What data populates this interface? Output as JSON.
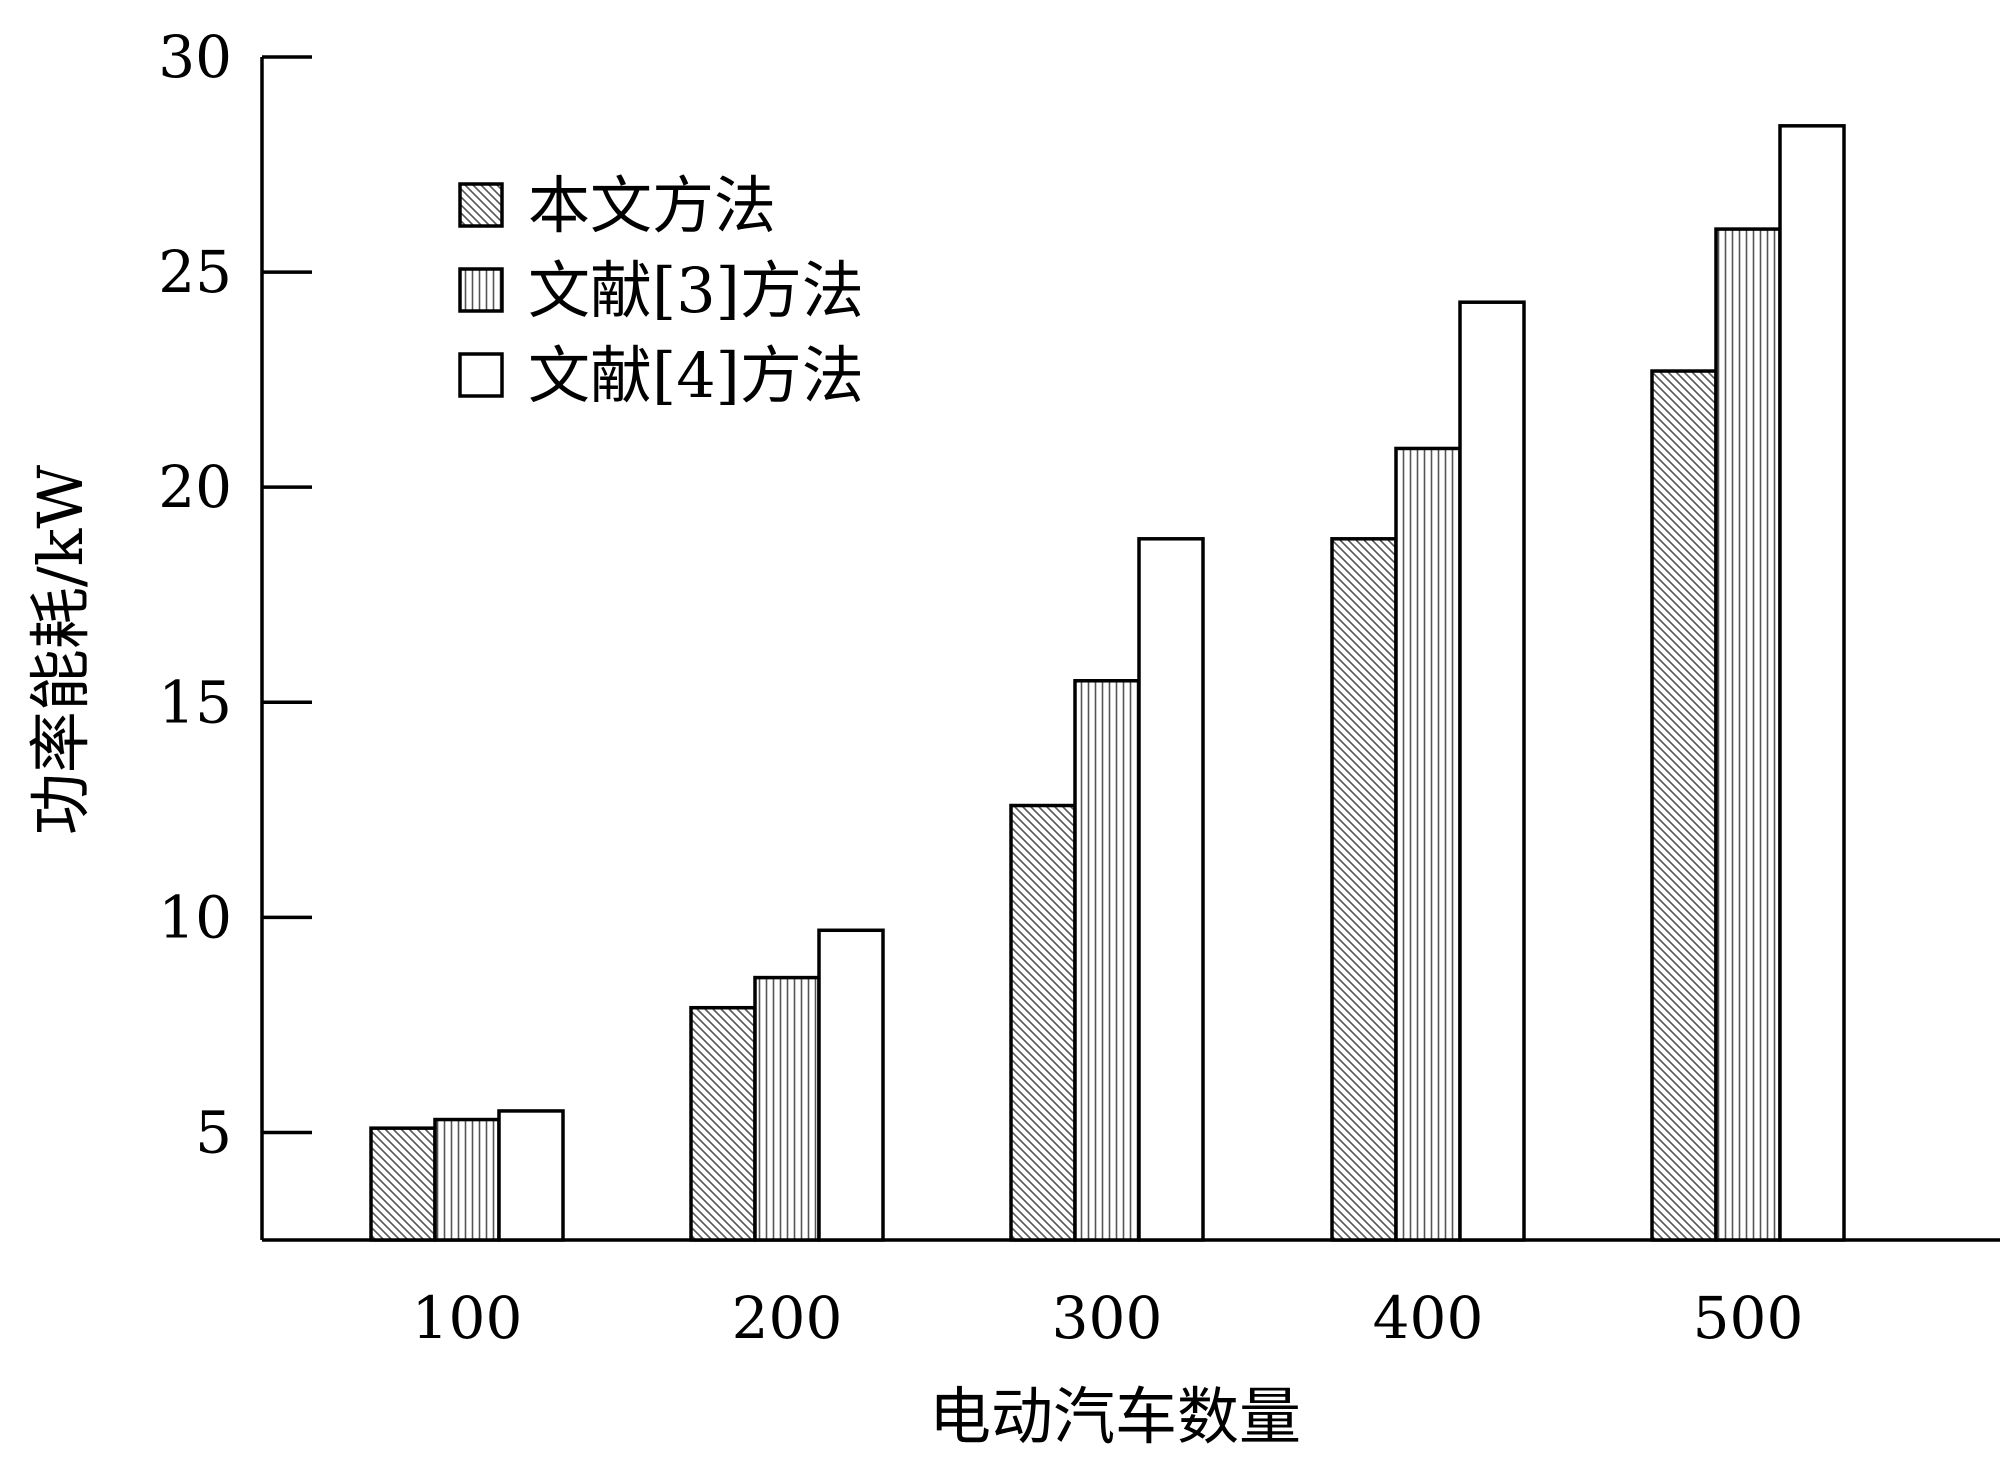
{
  "chart_data": {
    "type": "bar",
    "title": "",
    "xlabel": "电动汽车数量",
    "ylabel": "功率能耗/kW",
    "categories": [
      "100",
      "200",
      "300",
      "400",
      "500"
    ],
    "series": [
      {
        "name": "本文方法",
        "pattern": "diagonal-hatch",
        "values": [
          5.1,
          7.9,
          12.6,
          18.8,
          22.7
        ]
      },
      {
        "name": "文献[3]方法",
        "pattern": "vertical-hatch",
        "values": [
          5.3,
          8.6,
          15.5,
          20.9,
          26.0
        ]
      },
      {
        "name": "文献[4]方法",
        "pattern": "empty",
        "values": [
          5.5,
          9.7,
          18.8,
          24.3,
          28.4
        ]
      }
    ],
    "ylim": [
      2.5,
      30
    ],
    "yticks": [
      5,
      10,
      15,
      20,
      25,
      30
    ],
    "grid": false,
    "legend_position": "top-left",
    "colors": {
      "stroke": "#000000",
      "fill": "#ffffff",
      "hatch": "#555555"
    }
  }
}
